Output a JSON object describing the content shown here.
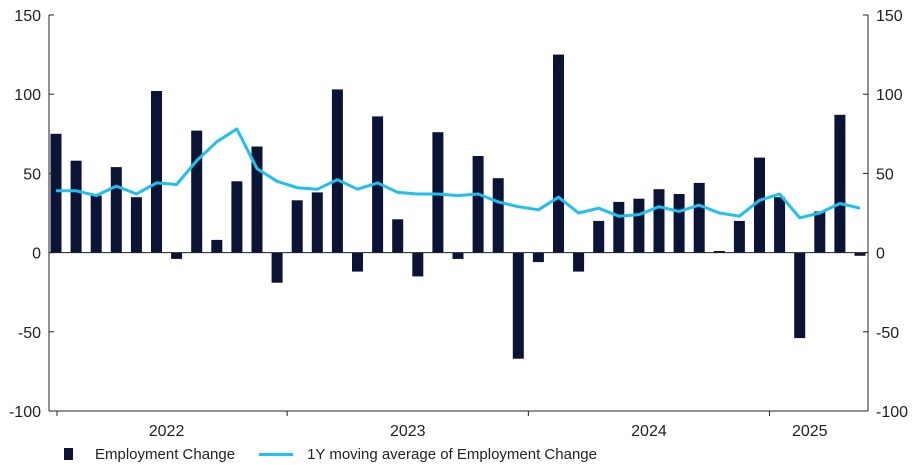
{
  "chart_data": {
    "type": "bar",
    "title": "",
    "xlabel": "",
    "ylabel": "",
    "ylim": [
      -100,
      150
    ],
    "yticks": [
      -100,
      -50,
      0,
      50,
      100,
      150
    ],
    "y_axes": "left and right, identical scale",
    "grid": false,
    "legend_position": "bottom-left",
    "x_tick_labels": [
      "2022",
      "2023",
      "2024",
      "2025"
    ],
    "x_label_month_index": [
      5.5,
      17.5,
      29.5,
      37.5
    ],
    "x_divider_month_index": [
      11.5,
      23.5,
      35.5
    ],
    "x_start": "2021-09",
    "series": [
      {
        "name": "Employment Change",
        "kind": "bar",
        "color": "#0b1437",
        "values": [
          75,
          58,
          36,
          54,
          35,
          102,
          -4,
          77,
          8,
          45,
          67,
          -19,
          33,
          38,
          103,
          -12,
          86,
          21,
          -15,
          76,
          -4,
          61,
          47,
          -67,
          -6,
          125,
          -12,
          20,
          32,
          34,
          40,
          37,
          44,
          1,
          20,
          60,
          35,
          -54,
          26,
          87,
          -2
        ]
      },
      {
        "name": "1Y moving average of Employment Change",
        "kind": "line",
        "color": "#1ec0ef",
        "values": [
          39,
          39,
          36,
          42,
          37,
          44,
          43,
          58,
          70,
          78,
          53,
          45,
          41,
          40,
          46,
          40,
          44,
          38,
          37,
          37,
          36,
          37,
          32,
          29,
          27,
          35,
          25,
          28,
          23,
          24,
          29,
          26,
          30,
          25,
          23,
          33,
          37,
          22,
          25,
          31,
          28
        ]
      }
    ]
  },
  "legend": {
    "bar_label": "Employment Change",
    "line_label": "1Y moving average of Employment Change"
  }
}
